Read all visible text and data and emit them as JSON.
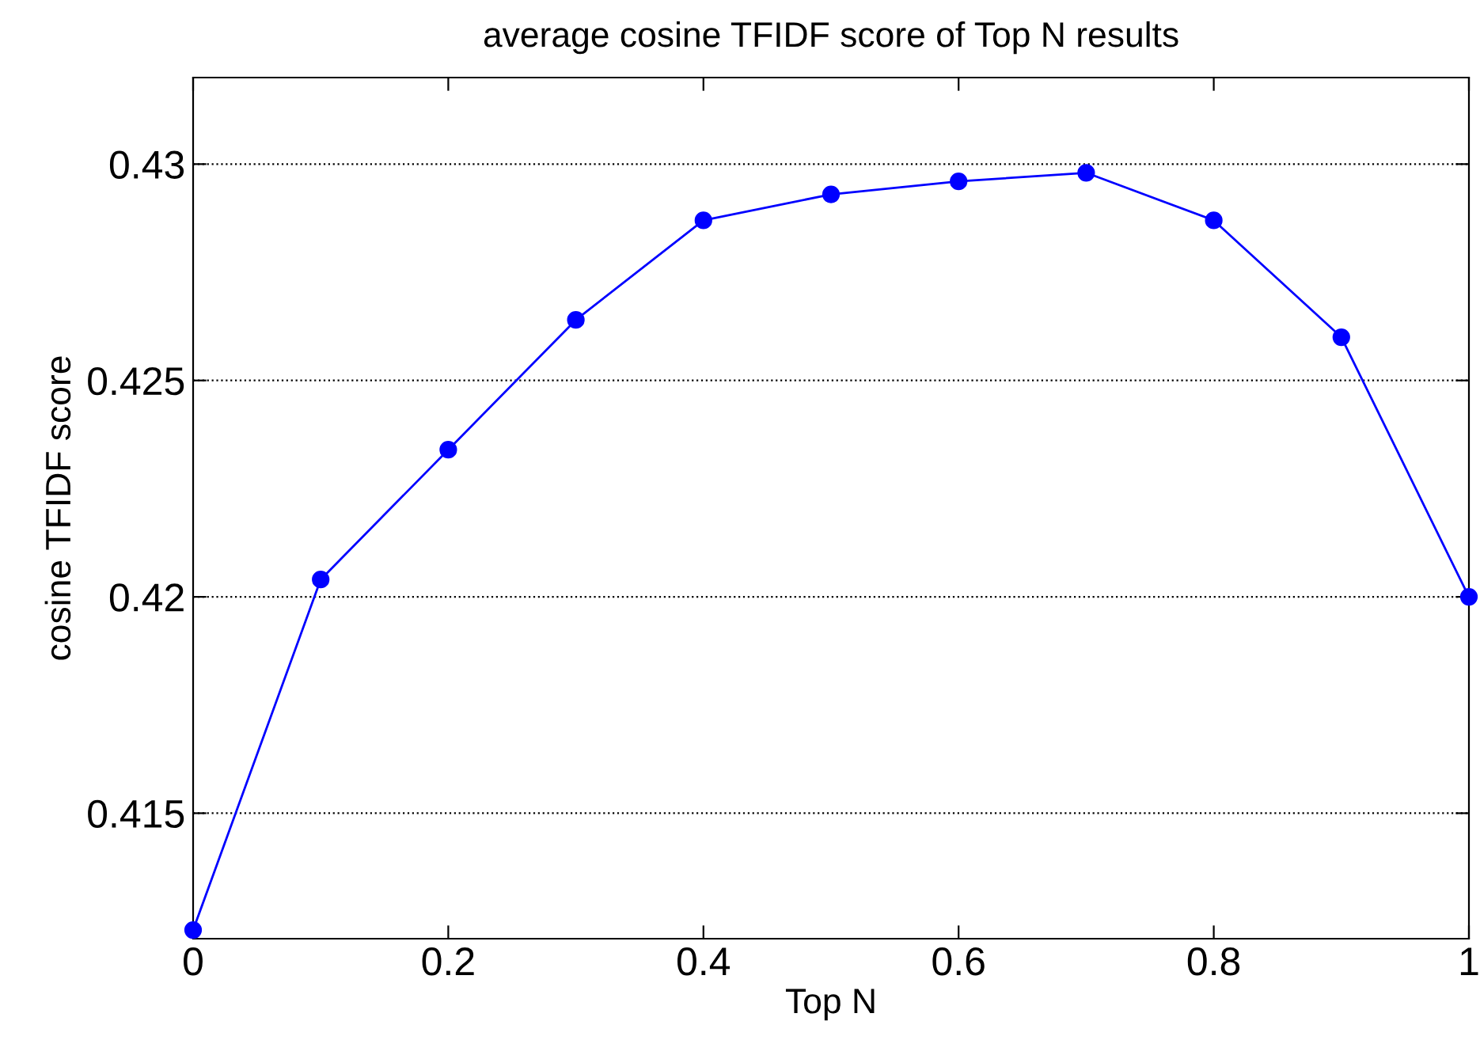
{
  "chart_data": {
    "type": "line",
    "title": "average cosine TFIDF score of Top N results",
    "xlabel": "Top N",
    "ylabel": "cosine TFIDF score",
    "x": [
      0,
      0.1,
      0.2,
      0.3,
      0.4,
      0.5,
      0.6,
      0.7,
      0.8,
      0.9,
      1
    ],
    "series": [
      {
        "color": "#0000ff",
        "values": [
          0.4123,
          0.4204,
          0.4234,
          0.4264,
          0.4287,
          0.4293,
          0.4296,
          0.4298,
          0.4287,
          0.426,
          0.42
        ]
      }
    ],
    "xlim": [
      0,
      1
    ],
    "xticks": [
      0,
      0.2,
      0.4,
      0.6,
      0.8,
      1
    ],
    "ylim": [
      0.4121,
      0.432
    ],
    "yticks": [
      0.415,
      0.42,
      0.425,
      0.43
    ],
    "grid": "y",
    "marker": "circle",
    "line_style": "solid"
  }
}
